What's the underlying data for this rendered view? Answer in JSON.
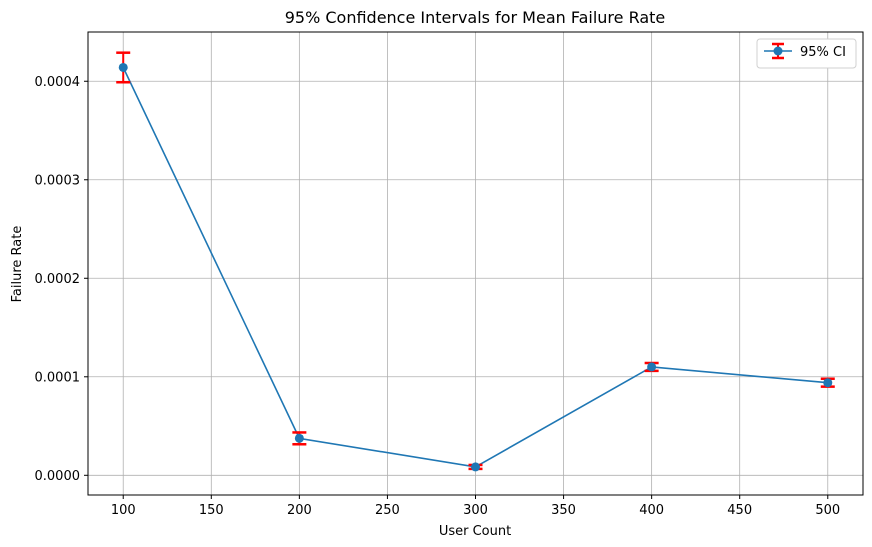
{
  "chart_data": {
    "type": "line",
    "title": "95% Confidence Intervals for Mean Failure Rate",
    "xlabel": "User Count",
    "ylabel": "Failure Rate",
    "x": [
      100,
      200,
      300,
      400,
      500
    ],
    "series": [
      {
        "name": "95% CI",
        "values": [
          0.000414,
          3.75e-05,
          8.5e-06,
          0.00011,
          9.4e-05
        ],
        "ci_lower": [
          0.000399,
          3.15e-05,
          6.5e-06,
          0.000106,
          9e-05
        ],
        "ci_upper": [
          0.000429,
          4.35e-05,
          1.05e-05,
          0.000114,
          9.8e-05
        ],
        "line_color": "#1f77b4",
        "errorbar_color": "#ff0000"
      }
    ],
    "xlim": [
      80,
      520
    ],
    "ylim": [
      -2e-05,
      0.00045
    ],
    "x_ticks": [
      100,
      150,
      200,
      250,
      300,
      350,
      400,
      450,
      500
    ],
    "x_tick_labels": [
      "100",
      "150",
      "200",
      "250",
      "300",
      "350",
      "400",
      "450",
      "500"
    ],
    "y_ticks": [
      0,
      0.0001,
      0.0002,
      0.0003,
      0.0004
    ],
    "y_tick_labels": [
      "0.0000",
      "0.0001",
      "0.0002",
      "0.0003",
      "0.0004"
    ],
    "grid": true,
    "legend_position": "top-right"
  }
}
